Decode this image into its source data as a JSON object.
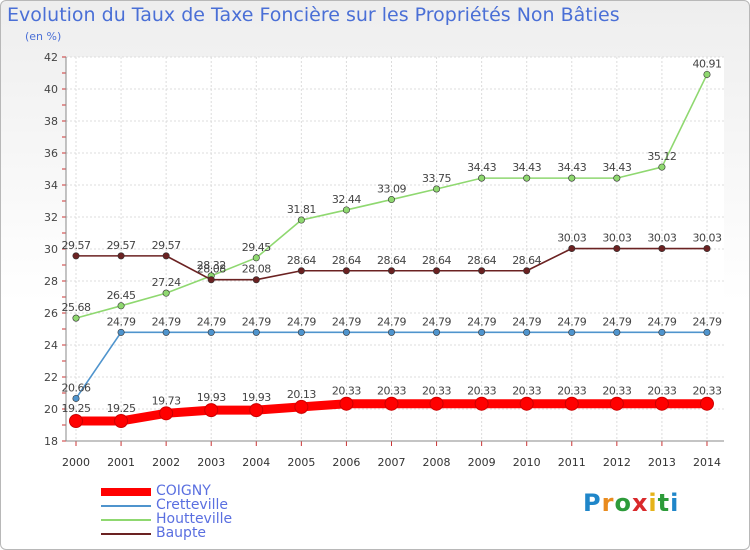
{
  "title": "Evolution du Taux de Taxe Foncière sur les Propriétés Non Bâties",
  "unit_label": "(en %)",
  "logo": [
    "P",
    "r",
    "o",
    "x",
    "i",
    "t",
    "i"
  ],
  "logo_colors": [
    "#1f86c9",
    "#e98b1e",
    "#2d9b3a",
    "#d9292b",
    "#e5b31a",
    "#2d9b3a",
    "#1f86c9"
  ],
  "chart_data": {
    "type": "line",
    "title": "Evolution du Taux de Taxe Foncière sur les Propriétés Non Bâties",
    "ylabel": "(en %)",
    "xlabel": "",
    "x": [
      "2000",
      "2001",
      "2002",
      "2003",
      "2004",
      "2005",
      "2006",
      "2007",
      "2008",
      "2009",
      "2010",
      "2011",
      "2012",
      "2013",
      "2014"
    ],
    "ylim": [
      18,
      42
    ],
    "yticks": [
      18,
      20,
      22,
      24,
      26,
      28,
      30,
      32,
      34,
      36,
      38,
      40,
      42
    ],
    "grid": true,
    "legend_position": "bottom-left",
    "series": [
      {
        "name": "COIGNY",
        "color": "#ff0000",
        "values": [
          19.25,
          19.25,
          19.73,
          19.93,
          19.93,
          20.13,
          20.33,
          20.33,
          20.33,
          20.33,
          20.33,
          20.33,
          20.33,
          20.33,
          20.33
        ],
        "labels": [
          "19.25",
          "19.25",
          "19.73",
          "19.93",
          "19.93",
          "20.13",
          "20.33",
          "20.33",
          "20.33",
          "20.33",
          "20.33",
          "20.33",
          "20.33",
          "20.33",
          "20.33"
        ]
      },
      {
        "name": "Cretteville",
        "color": "#4f94cd",
        "values": [
          20.66,
          24.79,
          24.79,
          24.79,
          24.79,
          24.79,
          24.79,
          24.79,
          24.79,
          24.79,
          24.79,
          24.79,
          24.79,
          24.79,
          24.79
        ],
        "labels": [
          "20.66",
          "24.79",
          "24.79",
          "24.79",
          "24.79",
          "24.79",
          "24.79",
          "24.79",
          "24.79",
          "24.79",
          "24.79",
          "24.79",
          "24.79",
          "24.79",
          "24.79"
        ]
      },
      {
        "name": "Houtteville",
        "color": "#8fd870",
        "values": [
          25.68,
          26.45,
          27.24,
          28.32,
          29.45,
          31.81,
          32.44,
          33.09,
          33.75,
          34.43,
          34.43,
          34.43,
          34.43,
          35.12,
          40.91
        ],
        "labels": [
          "25.68",
          "26.45",
          "27.24",
          "28.32",
          "29.45",
          "31.81",
          "32.44",
          "33.09",
          "33.75",
          "34.43",
          "34.43",
          "34.43",
          "34.43",
          "35.12",
          "40.91"
        ]
      },
      {
        "name": "Baupte",
        "color": "#6b2222",
        "values": [
          29.57,
          29.57,
          29.57,
          28.08,
          28.08,
          28.64,
          28.64,
          28.64,
          28.64,
          28.64,
          28.64,
          30.03,
          30.03,
          30.03,
          30.03
        ],
        "labels": [
          "29.57",
          "29.57",
          "29.57",
          "28.08",
          "28.08",
          "28.64",
          "28.64",
          "28.64",
          "28.64",
          "28.64",
          "28.64",
          "30.03",
          "30.03",
          "30.03",
          "30.03"
        ]
      }
    ]
  }
}
